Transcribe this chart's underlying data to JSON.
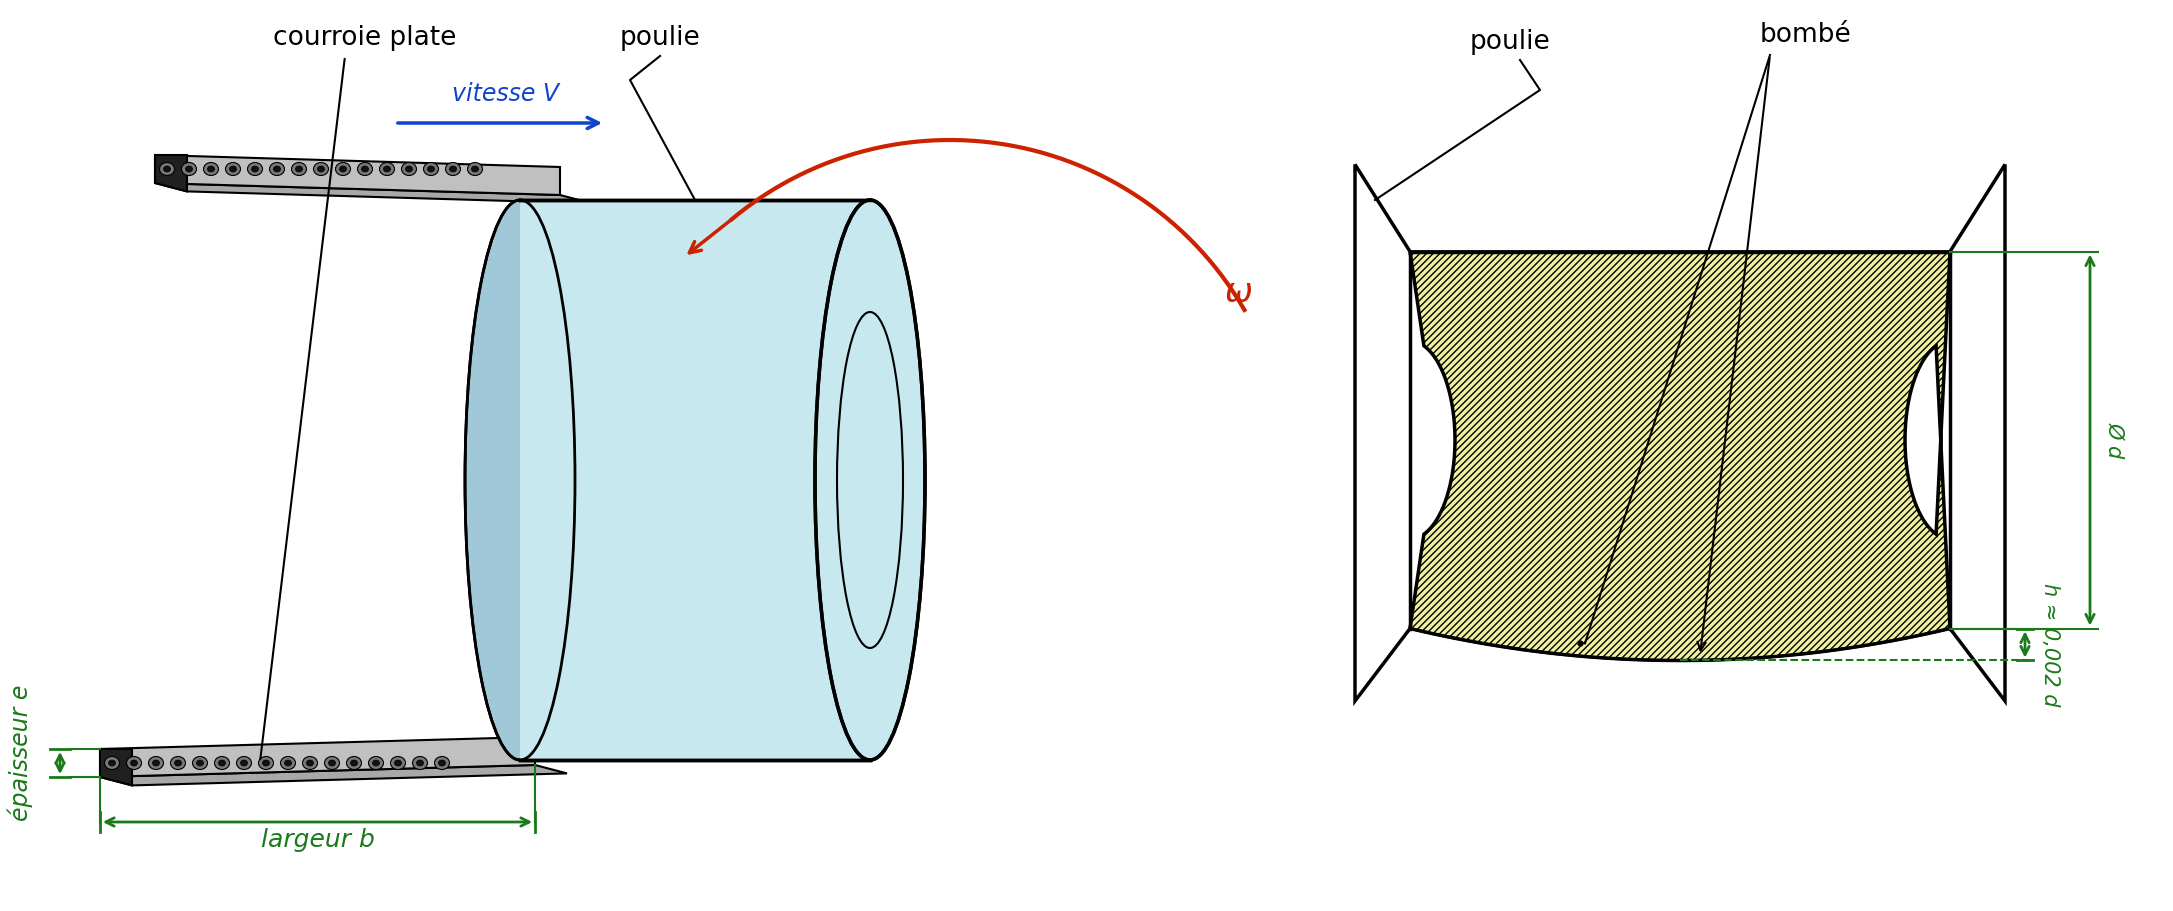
{
  "bg_color": "#ffffff",
  "pulley_color": "#c8e8f0",
  "pulley_dark": "#a0c8d8",
  "pulley_rim": "#88b8cc",
  "belt_face": "#b8b8b8",
  "belt_top": "#d0d0d0",
  "belt_dark": "#888888",
  "belt_cord_outer": "#707070",
  "belt_cord_inner": "#202020",
  "green_color": "#1a7a1a",
  "red_color": "#cc2200",
  "blue_color": "#1144cc",
  "yellow_fill": "#f0f0a0",
  "black": "#000000",
  "white": "#ffffff",
  "labels": {
    "courroie_plate": "courroie plate",
    "poulie_left": "poulie",
    "poulie_right": "poulie",
    "bombe": "bombé",
    "largeur": "largeur b",
    "epaisseur": "épaisseur e",
    "vitesse": "vitesse V",
    "omega": "ω",
    "h_formula": "h ≈ 0,002 d",
    "diam": "Ø d"
  }
}
